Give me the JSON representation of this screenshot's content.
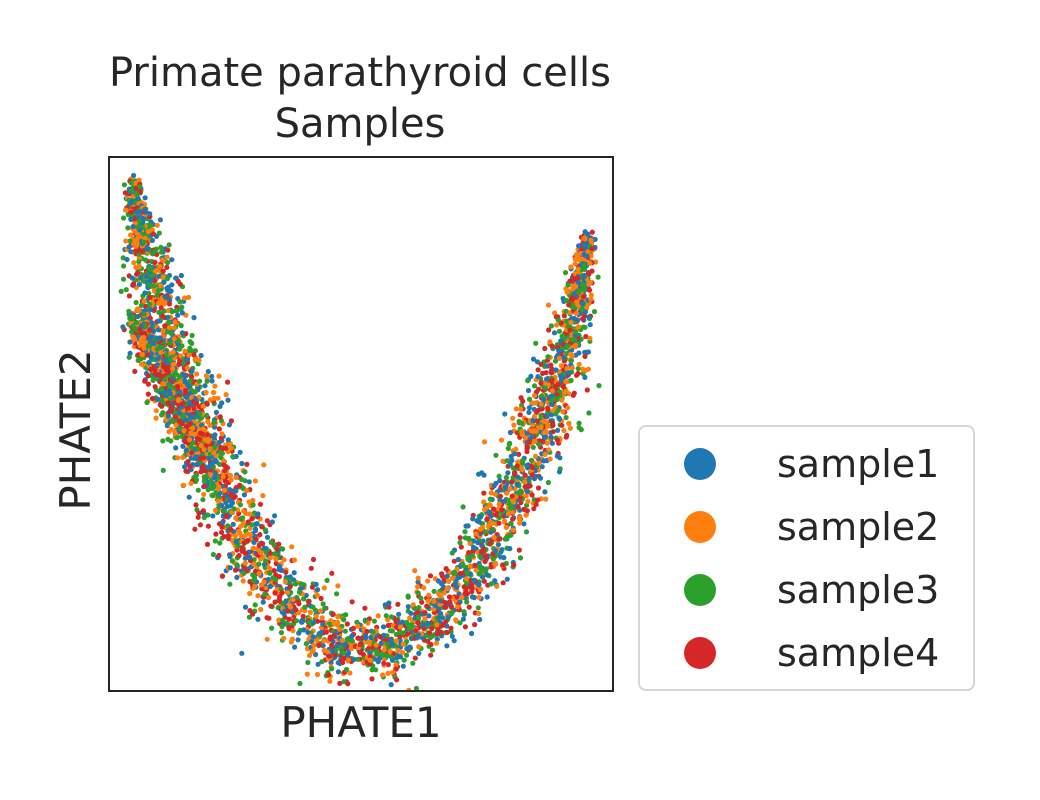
{
  "chart_data": {
    "type": "scatter",
    "title": "Primate parathyroid cells",
    "subtitle": "Samples",
    "xlabel": "PHATE1",
    "ylabel": "PHATE2",
    "grid": false,
    "legend_position": "center-right outside",
    "xlim": [
      0,
      1
    ],
    "ylim": [
      0,
      1
    ],
    "series": [
      {
        "name": "sample1",
        "color": "#1f77b4"
      },
      {
        "name": "sample2",
        "color": "#ff7f0e"
      },
      {
        "name": "sample3",
        "color": "#2ca02c"
      },
      {
        "name": "sample4",
        "color": "#d62728"
      }
    ],
    "manifold_path": [
      [
        0.05,
        0.95
      ],
      [
        0.08,
        0.8
      ],
      [
        0.13,
        0.62
      ],
      [
        0.2,
        0.42
      ],
      [
        0.3,
        0.23
      ],
      [
        0.4,
        0.12
      ],
      [
        0.5,
        0.07
      ],
      [
        0.6,
        0.1
      ],
      [
        0.72,
        0.22
      ],
      [
        0.83,
        0.42
      ],
      [
        0.91,
        0.65
      ],
      [
        0.95,
        0.85
      ]
    ],
    "side_branch_path": [
      [
        0.05,
        0.71
      ],
      [
        0.09,
        0.62
      ],
      [
        0.14,
        0.53
      ],
      [
        0.2,
        0.43
      ]
    ]
  }
}
